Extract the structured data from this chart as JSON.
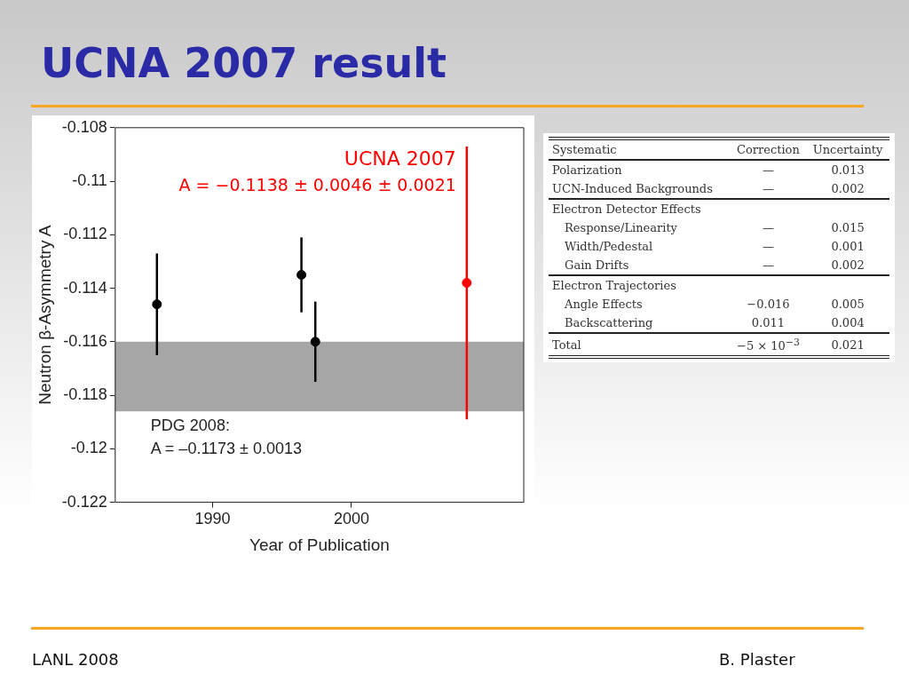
{
  "chart_data": [
    {
      "type": "scatter",
      "title": "UCNA 2007 result",
      "xlabel": "Year of Publication",
      "ylabel": "Neutron β-Asymmetry A",
      "xlim": [
        1983,
        2012.4
      ],
      "xticks": [
        1990,
        2000
      ],
      "ylim": [
        -0.122,
        -0.108
      ],
      "yticks": [
        -0.122,
        -0.12,
        -0.118,
        -0.116,
        -0.114,
        -0.112,
        -0.11,
        -0.108
      ],
      "grid": false,
      "legend": false,
      "marker": "circle",
      "bands": [
        {
          "axis": "y",
          "from": -0.1186,
          "to": -0.116,
          "label": "PDG 2008:\nA = –0.1173 ± 0.0013",
          "color": "#a6a6a6"
        }
      ],
      "series": [
        {
          "color": "#000000",
          "x": [
            1986,
            1996.4,
            1997.4
          ],
          "values": [
            -0.1146,
            -0.1135,
            -0.116
          ],
          "errors": [
            0.0019,
            0.0014,
            0.0015
          ]
        },
        {
          "name": "UCNA 2007",
          "color": "#ff0000",
          "x": [
            2008.3
          ],
          "values": [
            -0.1138
          ],
          "errors": [
            0.0051
          ]
        }
      ],
      "annotations": [
        "A = −0.1138 ± 0.0046 ± 0.0021",
        "LANL 2008",
        "B. Plaster"
      ]
    },
    {
      "type": "other",
      "xlabel": "Systematic",
      "data_labels": true,
      "categories": [
        "Polarization",
        "UCN-Induced Backgrounds",
        "Electron Detector Effects",
        "Response/Linearity",
        "Width/Pedestal",
        "Gain Drifts",
        "Electron Trajectories",
        "Angle Effects",
        "Backscattering",
        "Total"
      ],
      "series": [
        {
          "name": "Correction",
          "values": [
            null,
            null,
            null,
            null,
            null,
            null,
            null,
            -0.016,
            0.011,
            -0.005
          ],
          "value_labels": [
            "—",
            "—",
            null,
            "—",
            "—",
            "—",
            null,
            "−0.016",
            "0.011",
            "−5 × 10$^{−3}$"
          ]
        },
        {
          "name": "Uncertainty",
          "values": [
            0.013,
            0.002,
            null,
            0.015,
            0.001,
            0.002,
            null,
            0.005,
            0.004,
            0.021
          ]
        }
      ]
    }
  ]
}
